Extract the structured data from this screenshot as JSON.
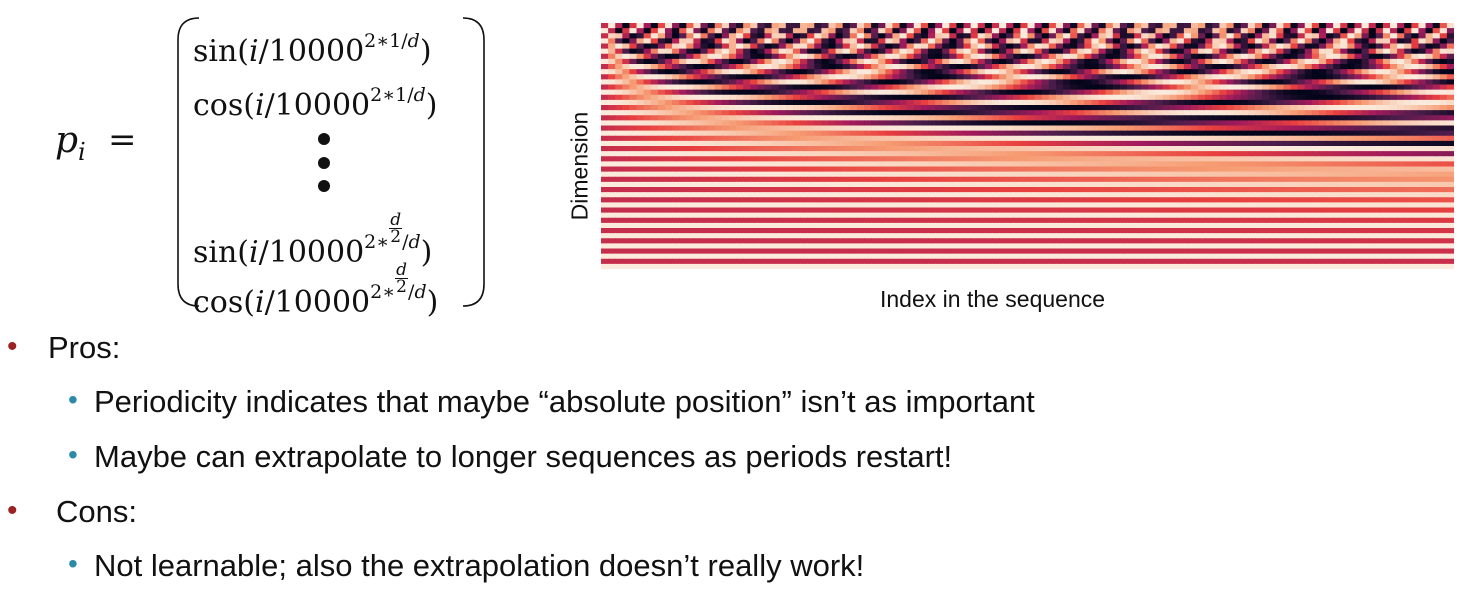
{
  "equation": {
    "lhs_symbol": "p",
    "lhs_subscript": "i",
    "equals": "=",
    "rows": [
      {
        "fn": "sin(",
        "var": "i",
        "base": "/10000",
        "exp": "2∗1/",
        "exp_var": "d",
        "close": ")"
      },
      {
        "fn": "cos(",
        "var": "i",
        "base": "/10000",
        "exp": "2∗1/",
        "exp_var": "d",
        "close": ")"
      },
      {
        "fn": "sin(",
        "var": "i",
        "base": "/10000",
        "exp_pre": "2∗",
        "frac_num": "d",
        "frac_den": "2",
        "exp_post": "/",
        "exp_var": "d",
        "close": ")"
      },
      {
        "fn": "cos(",
        "var": "i",
        "base": "/10000",
        "exp_pre": "2∗",
        "frac_num": "d",
        "frac_den": "2",
        "exp_post": "/",
        "exp_var": "d",
        "close": ")"
      }
    ]
  },
  "heatmap": {
    "y_label": "Dimension",
    "x_label": "Index in the sequence",
    "rows": 48,
    "positions": 120,
    "colormap": [
      "#03051a",
      "#4c1d4b",
      "#a11a5b",
      "#e83f3f",
      "#f69c73",
      "#faebdd"
    ]
  },
  "bullets": [
    {
      "label": "Pros:",
      "items": [
        "Periodicity indicates that maybe “absolute position” isn’t as important",
        "Maybe can extrapolate to longer sequences as periods restart!"
      ]
    },
    {
      "label": "Cons:",
      "items": [
        "Not learnable; also the extrapolation doesn’t really work!"
      ]
    }
  ],
  "colors": {
    "bullet_level1": "#9b2222",
    "bullet_level2": "#2a8aa8"
  }
}
